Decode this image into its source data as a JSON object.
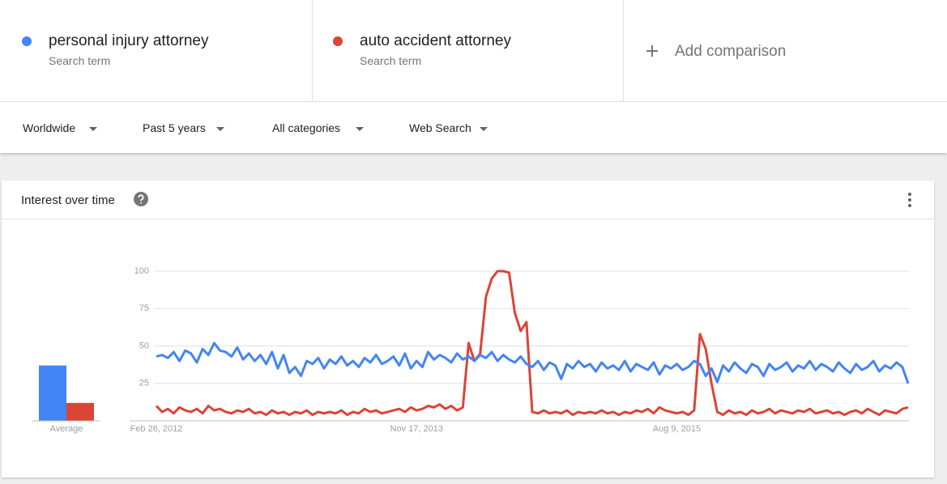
{
  "terms": [
    {
      "name": "personal injury attorney",
      "kind": "Search term"
    },
    {
      "name": "auto accident attorney",
      "kind": "Search term"
    }
  ],
  "add_comparison": "Add comparison",
  "filters": [
    "Worldwide",
    "Past 5 years",
    "All categories",
    "Web Search"
  ],
  "panel_title": "Interest over time",
  "chart_data": [
    {
      "type": "line",
      "categories": [
        "Feb 26, 2012",
        null,
        null,
        null,
        null,
        null,
        null,
        null,
        null,
        null,
        null,
        null,
        null,
        null,
        null,
        null,
        null,
        null,
        null,
        null,
        null,
        null,
        null,
        null,
        null,
        null,
        null,
        null,
        null,
        null,
        null,
        null,
        null,
        null,
        null,
        null,
        null,
        null,
        null,
        null,
        null,
        null,
        null,
        null,
        null,
        "Nov 17, 2013",
        null,
        null,
        null,
        null,
        null,
        null,
        null,
        null,
        null,
        null,
        null,
        null,
        null,
        null,
        null,
        null,
        null,
        null,
        null,
        null,
        null,
        null,
        null,
        null,
        null,
        null,
        null,
        null,
        null,
        null,
        null,
        null,
        null,
        null,
        null,
        null,
        null,
        null,
        null,
        null,
        null,
        null,
        null,
        null,
        "Aug 9, 2015",
        null,
        null,
        null,
        null,
        null,
        null,
        null,
        null,
        null,
        null,
        null,
        null,
        null,
        null,
        null,
        null,
        null,
        null,
        null,
        null,
        null,
        null,
        null,
        null,
        null,
        null,
        null,
        null,
        null,
        null,
        null,
        null,
        null,
        null,
        null,
        null,
        null,
        null,
        null,
        null
      ],
      "series": [
        {
          "name": "personal injury attorney",
          "color": "#4285f4",
          "values": [
            43,
            44,
            42,
            46,
            40,
            47,
            45,
            39,
            48,
            44,
            52,
            47,
            46,
            43,
            49,
            41,
            45,
            40,
            44,
            38,
            46,
            35,
            44,
            32,
            36,
            30,
            40,
            38,
            42,
            35,
            41,
            38,
            43,
            37,
            40,
            36,
            42,
            39,
            44,
            38,
            40,
            43,
            37,
            45,
            35,
            40,
            36,
            46,
            41,
            44,
            42,
            39,
            45,
            41,
            43,
            40,
            44,
            42,
            46,
            40,
            44,
            41,
            39,
            43,
            38,
            36,
            40,
            34,
            39,
            37,
            28,
            38,
            35,
            40,
            36,
            38,
            33,
            39,
            35,
            37,
            34,
            40,
            33,
            38,
            36,
            34,
            39,
            31,
            37,
            35,
            38,
            34,
            36,
            40,
            38,
            30,
            35,
            26,
            37,
            33,
            39,
            35,
            32,
            38,
            36,
            30,
            38,
            34,
            36,
            39,
            33,
            37,
            35,
            40,
            34,
            38,
            36,
            33,
            39,
            35,
            32,
            38,
            34,
            36,
            40,
            33,
            37,
            35,
            39,
            36,
            25
          ]
        },
        {
          "name": "auto accident attorney",
          "color": "#db4437",
          "values": [
            10,
            6,
            8,
            5,
            9,
            7,
            6,
            8,
            5,
            10,
            7,
            8,
            6,
            5,
            7,
            6,
            8,
            5,
            6,
            4,
            7,
            5,
            6,
            4,
            6,
            5,
            7,
            4,
            6,
            5,
            6,
            5,
            7,
            4,
            6,
            5,
            8,
            6,
            7,
            5,
            6,
            7,
            8,
            6,
            9,
            7,
            8,
            10,
            9,
            11,
            8,
            10,
            7,
            9,
            52,
            40,
            45,
            83,
            95,
            100,
            100,
            99,
            72,
            60,
            66,
            6,
            5,
            7,
            5,
            6,
            5,
            7,
            4,
            6,
            5,
            6,
            5,
            7,
            5,
            6,
            4,
            6,
            5,
            7,
            6,
            8,
            5,
            9,
            7,
            6,
            5,
            6,
            4,
            7,
            58,
            48,
            25,
            6,
            4,
            7,
            5,
            6,
            4,
            7,
            5,
            6,
            8,
            5,
            7,
            6,
            5,
            7,
            6,
            8,
            5,
            6,
            7,
            5,
            6,
            4,
            6,
            7,
            5,
            8,
            6,
            4,
            7,
            6,
            5,
            8,
            9
          ]
        }
      ],
      "ylim": [
        0,
        100
      ],
      "yticks": [
        25,
        50,
        75,
        100
      ],
      "grid": true
    },
    {
      "type": "bar",
      "categories": [
        "Average"
      ],
      "series": [
        {
          "color": "#4285f4",
          "values": [
            37
          ]
        },
        {
          "color": "#db4437",
          "values": [
            12
          ]
        }
      ],
      "ylim": [
        0,
        100
      ]
    }
  ]
}
